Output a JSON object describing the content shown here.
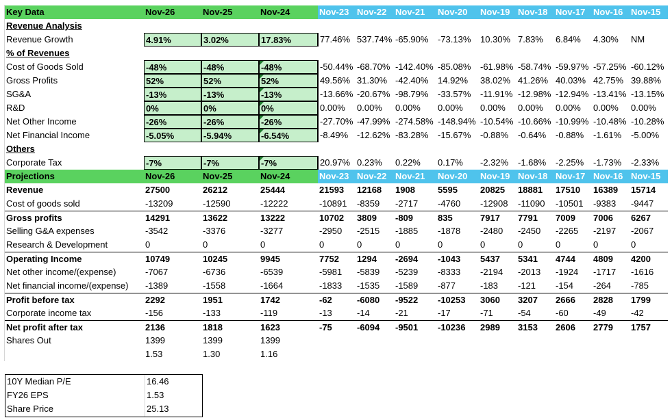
{
  "headers": {
    "key_data": "Key Data",
    "projections": "Projections",
    "periods": [
      "Nov-26",
      "Nov-25",
      "Nov-24",
      "Nov-23",
      "Nov-22",
      "Nov-21",
      "Nov-20",
      "Nov-19",
      "Nov-18",
      "Nov-17",
      "Nov-16",
      "Nov-15"
    ]
  },
  "sections": {
    "revenue_analysis": "Revenue Analysis",
    "pct_revenues": "% of Revenues",
    "others": "Others"
  },
  "ratio_rows": [
    {
      "label": "Revenue Growth",
      "values": [
        "4.91%",
        "3.02%",
        "17.83%",
        "77.46%",
        "537.74%",
        "-65.90%",
        "-73.13%",
        "10.30%",
        "7.83%",
        "6.84%",
        "4.30%",
        "NM"
      ]
    },
    {
      "label": "Cost of Goods Sold",
      "values": [
        "-48%",
        "-48%",
        "-48%",
        "-50.44%",
        "-68.70%",
        "-142.40%",
        "-85.08%",
        "-61.98%",
        "-58.74%",
        "-59.97%",
        "-57.25%",
        "-60.12%"
      ]
    },
    {
      "label": "Gross Profits",
      "values": [
        "52%",
        "52%",
        "52%",
        "49.56%",
        "31.30%",
        "-42.40%",
        "14.92%",
        "38.02%",
        "41.26%",
        "40.03%",
        "42.75%",
        "39.88%"
      ]
    },
    {
      "label": "SG&A",
      "values": [
        "-13%",
        "-13%",
        "-13%",
        "-13.66%",
        "-20.67%",
        "-98.79%",
        "-33.57%",
        "-11.91%",
        "-12.98%",
        "-12.94%",
        "-13.41%",
        "-13.15%"
      ]
    },
    {
      "label": "R&D",
      "values": [
        "0%",
        "0%",
        "0%",
        "0.00%",
        "0.00%",
        "0.00%",
        "0.00%",
        "0.00%",
        "0.00%",
        "0.00%",
        "0.00%",
        "0.00%"
      ]
    },
    {
      "label": "Net Other Income",
      "values": [
        "-26%",
        "-26%",
        "-26%",
        "-27.70%",
        "-47.99%",
        "-274.58%",
        "-148.94%",
        "-10.54%",
        "-10.66%",
        "-10.99%",
        "-10.48%",
        "-10.28%"
      ]
    },
    {
      "label": "Net Financial Income",
      "values": [
        "-5.05%",
        "-5.94%",
        "-6.54%",
        "-8.49%",
        "-12.62%",
        "-83.28%",
        "-15.67%",
        "-0.88%",
        "-0.64%",
        "-0.88%",
        "-1.61%",
        "-5.00%"
      ]
    },
    {
      "label": "Corporate Tax",
      "values": [
        "-7%",
        "-7%",
        "-7%",
        "20.97%",
        "0.23%",
        "0.22%",
        "0.17%",
        "-2.32%",
        "-1.68%",
        "-2.25%",
        "-1.73%",
        "-2.33%"
      ]
    }
  ],
  "projection_rows": [
    {
      "label": "Revenue",
      "bold": true,
      "values": [
        "27500",
        "26212",
        "25444",
        "21593",
        "12168",
        "1908",
        "5595",
        "20825",
        "18881",
        "17510",
        "16389",
        "15714"
      ]
    },
    {
      "label": "Cost of goods sold",
      "bold": false,
      "values": [
        "-13209",
        "-12590",
        "-12222",
        "-10891",
        "-8359",
        "-2717",
        "-4760",
        "-12908",
        "-11090",
        "-10501",
        "-9383",
        "-9447"
      ]
    },
    {
      "label": "Gross profits",
      "bold": true,
      "values": [
        "14291",
        "13622",
        "13222",
        "10702",
        "3809",
        "-809",
        "835",
        "7917",
        "7791",
        "7009",
        "7006",
        "6267"
      ]
    },
    {
      "label": "Selling G&A expenses",
      "bold": false,
      "values": [
        "-3542",
        "-3376",
        "-3277",
        "-2950",
        "-2515",
        "-1885",
        "-1878",
        "-2480",
        "-2450",
        "-2265",
        "-2197",
        "-2067"
      ]
    },
    {
      "label": "Research & Development",
      "bold": false,
      "values": [
        "0",
        "0",
        "0",
        "0",
        "0",
        "0",
        "0",
        "0",
        "0",
        "0",
        "0",
        "0"
      ]
    },
    {
      "label": "Operating Income",
      "bold": true,
      "values": [
        "10749",
        "10245",
        "9945",
        "7752",
        "1294",
        "-2694",
        "-1043",
        "5437",
        "5341",
        "4744",
        "4809",
        "4200"
      ]
    },
    {
      "label": "Net other income/(expense)",
      "bold": false,
      "values": [
        "-7067",
        "-6736",
        "-6539",
        "-5981",
        "-5839",
        "-5239",
        "-8333",
        "-2194",
        "-2013",
        "-1924",
        "-1717",
        "-1616"
      ]
    },
    {
      "label": "Net financial income/(expense)",
      "bold": false,
      "values": [
        "-1389",
        "-1558",
        "-1664",
        "-1833",
        "-1535",
        "-1589",
        "-877",
        "-183",
        "-121",
        "-154",
        "-264",
        "-785"
      ]
    },
    {
      "label": "Profit before tax",
      "bold": true,
      "values": [
        "2292",
        "1951",
        "1742",
        "-62",
        "-6080",
        "-9522",
        "-10253",
        "3060",
        "3207",
        "2666",
        "2828",
        "1799"
      ]
    },
    {
      "label": "Corporate income tax",
      "bold": false,
      "values": [
        "-156",
        "-133",
        "-119",
        "-13",
        "-14",
        "-21",
        "-17",
        "-71",
        "-54",
        "-60",
        "-49",
        "-42"
      ]
    },
    {
      "label": "Net profit after tax",
      "bold": true,
      "values": [
        "2136",
        "1818",
        "1623",
        "-75",
        "-6094",
        "-9501",
        "-10236",
        "2989",
        "3153",
        "2606",
        "2779",
        "1757"
      ]
    },
    {
      "label": "Shares Out",
      "bold": false,
      "values": [
        "1399",
        "1399",
        "1399"
      ]
    },
    {
      "label": "",
      "bold": false,
      "values": [
        "1.53",
        "1.30",
        "1.16"
      ]
    }
  ],
  "summary": [
    {
      "label": "10Y Median P/E",
      "value": "16.46"
    },
    {
      "label": "FY26 EPS",
      "value": "1.53"
    },
    {
      "label": "Share Price",
      "value": "25.13"
    }
  ]
}
